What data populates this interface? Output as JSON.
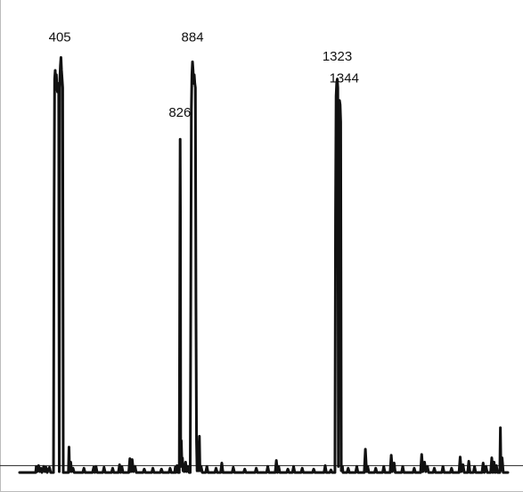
{
  "chart_data": {
    "type": "line",
    "title": "",
    "xlabel": "",
    "ylabel": "",
    "grid": false,
    "legend": "none",
    "xlim": [
      0,
      1700
    ],
    "ylim": [
      0,
      100
    ],
    "baseline": 2.2,
    "line_color": "#111111",
    "axis_color": "#222222",
    "series": [
      {
        "values": [
          [
            0,
            0.6
          ],
          [
            56,
            0.6
          ],
          [
            58,
            2.0
          ],
          [
            61,
            0.8
          ],
          [
            66,
            2.2
          ],
          [
            70,
            0.8
          ],
          [
            74,
            1.6
          ],
          [
            78,
            0.6
          ],
          [
            84,
            2.0
          ],
          [
            88,
            0.8
          ],
          [
            92,
            1.8
          ],
          [
            96,
            0.6
          ],
          [
            104,
            1.8
          ],
          [
            108,
            0.6
          ],
          [
            118,
            0.6
          ],
          [
            120,
            60
          ],
          [
            122,
            92
          ],
          [
            124,
            94
          ],
          [
            126,
            91
          ],
          [
            128,
            93
          ],
          [
            130,
            90
          ],
          [
            132,
            89
          ],
          [
            134,
            90
          ],
          [
            136,
            91
          ],
          [
            138,
            0.8
          ],
          [
            140,
            92
          ],
          [
            142,
            95
          ],
          [
            144,
            97
          ],
          [
            146,
            94
          ],
          [
            148,
            92
          ],
          [
            150,
            90
          ],
          [
            152,
            0.6
          ],
          [
            170,
            0.6
          ],
          [
            172,
            6.5
          ],
          [
            174,
            0.8
          ],
          [
            178,
            3.0
          ],
          [
            181,
            0.8
          ],
          [
            186,
            1.6
          ],
          [
            190,
            0.6
          ],
          [
            220,
            0.6
          ],
          [
            224,
            1.6
          ],
          [
            228,
            0.6
          ],
          [
            254,
            0.6
          ],
          [
            258,
            1.8
          ],
          [
            262,
            0.6
          ],
          [
            266,
            2.0
          ],
          [
            270,
            0.6
          ],
          [
            290,
            0.6
          ],
          [
            294,
            1.8
          ],
          [
            298,
            0.6
          ],
          [
            320,
            0.6
          ],
          [
            324,
            1.6
          ],
          [
            328,
            0.6
          ],
          [
            344,
            0.6
          ],
          [
            348,
            2.4
          ],
          [
            352,
            0.6
          ],
          [
            356,
            2.0
          ],
          [
            360,
            0.6
          ],
          [
            380,
            0.6
          ],
          [
            384,
            3.8
          ],
          [
            388,
            0.8
          ],
          [
            392,
            3.6
          ],
          [
            396,
            0.8
          ],
          [
            402,
            2.0
          ],
          [
            406,
            0.6
          ],
          [
            430,
            0.6
          ],
          [
            434,
            1.4
          ],
          [
            438,
            0.6
          ],
          [
            460,
            0.6
          ],
          [
            464,
            1.6
          ],
          [
            468,
            0.6
          ],
          [
            490,
            0.6
          ],
          [
            494,
            1.4
          ],
          [
            498,
            0.6
          ],
          [
            520,
            0.6
          ],
          [
            524,
            1.6
          ],
          [
            528,
            0.6
          ],
          [
            540,
            0.6
          ],
          [
            542,
            1.8
          ],
          [
            544,
            0.6
          ],
          [
            548,
            2.2
          ],
          [
            552,
            0.6
          ],
          [
            556,
            0.6
          ],
          [
            558,
            55
          ],
          [
            559,
            78
          ],
          [
            560,
            60
          ],
          [
            561,
            2.0
          ],
          [
            563,
            8.0
          ],
          [
            565,
            3.0
          ],
          [
            567,
            4.0
          ],
          [
            569,
            1.0
          ],
          [
            571,
            2.0
          ],
          [
            573,
            0.8
          ],
          [
            578,
            3.0
          ],
          [
            581,
            0.8
          ],
          [
            586,
            2.0
          ],
          [
            590,
            0.6
          ],
          [
            594,
            0.6
          ],
          [
            596,
            40
          ],
          [
            598,
            85
          ],
          [
            600,
            93
          ],
          [
            602,
            96
          ],
          [
            604,
            94
          ],
          [
            606,
            91
          ],
          [
            608,
            93
          ],
          [
            610,
            91
          ],
          [
            612,
            90
          ],
          [
            614,
            40
          ],
          [
            616,
            8.0
          ],
          [
            618,
            1.0
          ],
          [
            620,
            3.0
          ],
          [
            622,
            1.0
          ],
          [
            626,
            9.0
          ],
          [
            628,
            1.0
          ],
          [
            632,
            2.0
          ],
          [
            636,
            0.6
          ],
          [
            648,
            0.6
          ],
          [
            652,
            2.0
          ],
          [
            656,
            0.6
          ],
          [
            680,
            0.6
          ],
          [
            684,
            1.6
          ],
          [
            688,
            0.6
          ],
          [
            700,
            0.6
          ],
          [
            704,
            2.8
          ],
          [
            708,
            0.6
          ],
          [
            740,
            0.6
          ],
          [
            744,
            1.8
          ],
          [
            748,
            0.6
          ],
          [
            780,
            0.6
          ],
          [
            784,
            1.4
          ],
          [
            788,
            0.6
          ],
          [
            820,
            0.6
          ],
          [
            824,
            1.6
          ],
          [
            828,
            0.6
          ],
          [
            860,
            0.6
          ],
          [
            864,
            2.0
          ],
          [
            868,
            0.6
          ],
          [
            890,
            0.6
          ],
          [
            894,
            3.4
          ],
          [
            898,
            0.6
          ],
          [
            902,
            2.0
          ],
          [
            906,
            0.6
          ],
          [
            930,
            0.6
          ],
          [
            934,
            1.4
          ],
          [
            938,
            0.6
          ],
          [
            950,
            0.6
          ],
          [
            954,
            2.0
          ],
          [
            958,
            0.6
          ],
          [
            980,
            0.6
          ],
          [
            984,
            1.6
          ],
          [
            988,
            0.6
          ],
          [
            1020,
            0.6
          ],
          [
            1024,
            1.4
          ],
          [
            1028,
            0.6
          ],
          [
            1060,
            0.6
          ],
          [
            1064,
            2.2
          ],
          [
            1068,
            0.6
          ],
          [
            1080,
            0.6
          ],
          [
            1084,
            1.2
          ],
          [
            1088,
            0.6
          ],
          [
            1098,
            0.6
          ],
          [
            1100,
            60
          ],
          [
            1102,
            88
          ],
          [
            1104,
            91
          ],
          [
            1106,
            92
          ],
          [
            1108,
            90
          ],
          [
            1110,
            2.0
          ],
          [
            1112,
            85
          ],
          [
            1114,
            87
          ],
          [
            1116,
            86
          ],
          [
            1118,
            82
          ],
          [
            1120,
            1.0
          ],
          [
            1124,
            2.0
          ],
          [
            1126,
            0.6
          ],
          [
            1140,
            0.6
          ],
          [
            1144,
            1.6
          ],
          [
            1148,
            0.6
          ],
          [
            1170,
            0.6
          ],
          [
            1174,
            2.0
          ],
          [
            1178,
            0.6
          ],
          [
            1200,
            0.6
          ],
          [
            1204,
            6.0
          ],
          [
            1208,
            0.8
          ],
          [
            1212,
            2.0
          ],
          [
            1216,
            0.6
          ],
          [
            1236,
            0.6
          ],
          [
            1240,
            1.6
          ],
          [
            1244,
            0.6
          ],
          [
            1264,
            0.6
          ],
          [
            1268,
            2.0
          ],
          [
            1272,
            0.6
          ],
          [
            1290,
            0.6
          ],
          [
            1294,
            4.6
          ],
          [
            1298,
            0.8
          ],
          [
            1304,
            2.8
          ],
          [
            1308,
            0.6
          ],
          [
            1330,
            0.6
          ],
          [
            1334,
            2.0
          ],
          [
            1338,
            0.6
          ],
          [
            1370,
            0.6
          ],
          [
            1374,
            1.6
          ],
          [
            1378,
            0.6
          ],
          [
            1396,
            0.6
          ],
          [
            1400,
            4.8
          ],
          [
            1404,
            0.8
          ],
          [
            1410,
            3.0
          ],
          [
            1414,
            0.8
          ],
          [
            1420,
            2.0
          ],
          [
            1424,
            0.6
          ],
          [
            1440,
            0.6
          ],
          [
            1444,
            1.6
          ],
          [
            1448,
            0.6
          ],
          [
            1470,
            0.6
          ],
          [
            1474,
            2.0
          ],
          [
            1478,
            0.6
          ],
          [
            1500,
            0.6
          ],
          [
            1504,
            1.6
          ],
          [
            1508,
            0.6
          ],
          [
            1530,
            0.6
          ],
          [
            1534,
            4.2
          ],
          [
            1538,
            0.8
          ],
          [
            1544,
            2.4
          ],
          [
            1548,
            0.6
          ],
          [
            1560,
            0.6
          ],
          [
            1564,
            3.2
          ],
          [
            1568,
            0.6
          ],
          [
            1580,
            0.6
          ],
          [
            1584,
            2.0
          ],
          [
            1588,
            0.6
          ],
          [
            1610,
            0.6
          ],
          [
            1614,
            2.8
          ],
          [
            1618,
            0.6
          ],
          [
            1624,
            2.0
          ],
          [
            1628,
            0.6
          ],
          [
            1640,
            0.6
          ],
          [
            1644,
            4.0
          ],
          [
            1648,
            0.6
          ],
          [
            1652,
            3.0
          ],
          [
            1656,
            0.6
          ],
          [
            1660,
            2.2
          ],
          [
            1664,
            0.6
          ],
          [
            1672,
            0.6
          ],
          [
            1674,
            11
          ],
          [
            1676,
            1.0
          ],
          [
            1680,
            4.0
          ],
          [
            1684,
            0.6
          ],
          [
            1700,
            0.6
          ]
        ]
      }
    ],
    "annotations": [
      {
        "text": "405",
        "x": 140,
        "y": 99.5
      },
      {
        "text": "826",
        "x": 558,
        "y": 82
      },
      {
        "text": "884",
        "x": 602,
        "y": 99.5
      },
      {
        "text": "1323",
        "x": 1106,
        "y": 95
      },
      {
        "text": "1344",
        "x": 1130,
        "y": 90
      }
    ]
  }
}
